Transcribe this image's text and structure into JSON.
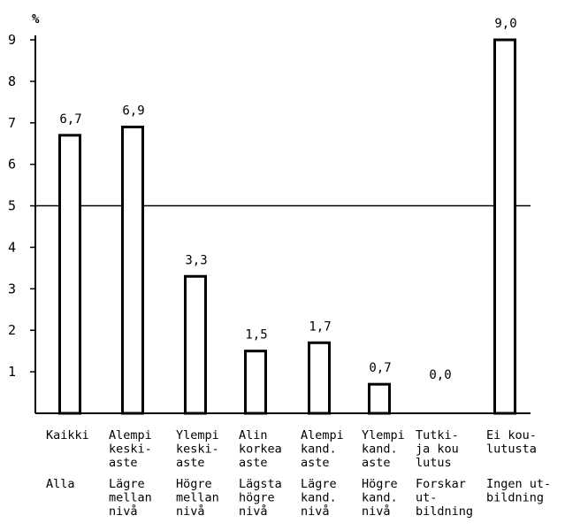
{
  "chart_data": {
    "type": "bar",
    "title": "",
    "xlabel": "",
    "ylabel": "%",
    "ylim": [
      0,
      9
    ],
    "yticks": [
      1,
      2,
      3,
      4,
      5,
      6,
      7,
      8,
      9
    ],
    "reference_line": 5,
    "categories": [
      {
        "fi": [
          "Kaikki"
        ],
        "sv": [
          "Alla"
        ]
      },
      {
        "fi": [
          "Alempi",
          "keski-",
          "aste"
        ],
        "sv": [
          "Lägre",
          "mellan",
          "nivå"
        ]
      },
      {
        "fi": [
          "Ylempi",
          "keski-",
          "aste"
        ],
        "sv": [
          "Högre",
          "mellan",
          "nivå"
        ]
      },
      {
        "fi": [
          "Alin",
          "korkea",
          "aste"
        ],
        "sv": [
          "Lägsta",
          "högre",
          "nivå"
        ]
      },
      {
        "fi": [
          "Alempi",
          "kand.",
          "aste"
        ],
        "sv": [
          "Lägre",
          "kand.",
          "nivå"
        ]
      },
      {
        "fi": [
          "Ylempi",
          "kand.",
          "aste"
        ],
        "sv": [
          "Högre",
          "kand.",
          "nivå"
        ]
      },
      {
        "fi": [
          "Tutki-",
          "ja kou",
          "lutus"
        ],
        "sv": [
          "Forskar",
          "ut-",
          "bildning"
        ]
      },
      {
        "fi": [
          "Ei kou-",
          "lutusta"
        ],
        "sv": [
          "Ingen ut-",
          "bildning"
        ]
      }
    ],
    "values": [
      6.7,
      6.9,
      3.3,
      1.5,
      1.7,
      0.7,
      0.0,
      9.0
    ],
    "value_labels": [
      "6,7",
      "6,9",
      "3,3",
      "1,5",
      "1,7",
      "0,7",
      "0,0",
      "9,0"
    ],
    "grid": false,
    "legend": "none"
  }
}
